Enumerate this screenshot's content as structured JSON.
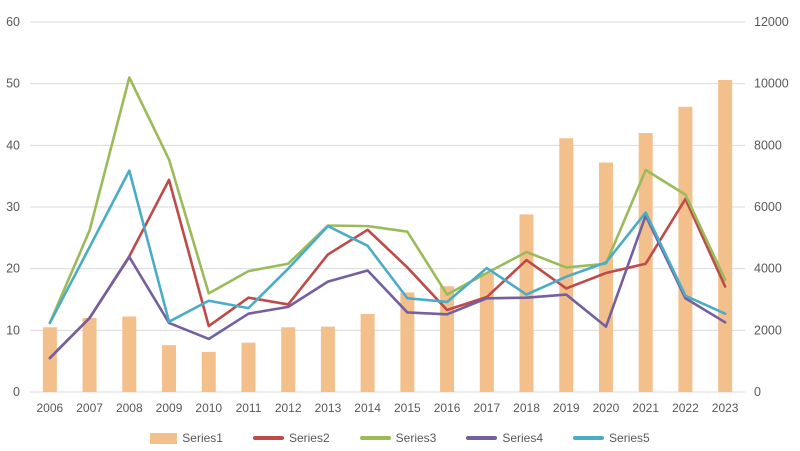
{
  "chart_data": {
    "type": "combo",
    "title": "",
    "categories": [
      "2006",
      "2007",
      "2008",
      "2009",
      "2010",
      "2011",
      "2012",
      "2013",
      "2014",
      "2015",
      "2016",
      "2017",
      "2018",
      "2019",
      "2020",
      "2021",
      "2022",
      "2023"
    ],
    "bar_series": {
      "name": "Series1",
      "axis": "right",
      "color": "#F3C08B",
      "values": [
        2100,
        2400,
        2450,
        1520,
        1300,
        1600,
        2100,
        2120,
        2530,
        3230,
        3430,
        3860,
        5760,
        8230,
        7440,
        8400,
        9250,
        10120
      ]
    },
    "line_series": [
      {
        "name": "Series2",
        "axis": "left",
        "color": "#BE4B48",
        "values": [
          5.5,
          12.0,
          22.0,
          34.4,
          10.7,
          15.3,
          14.2,
          22.3,
          26.3,
          20.2,
          13.3,
          15.4,
          21.4,
          16.8,
          19.3,
          20.8,
          31.3,
          17.1
        ]
      },
      {
        "name": "Series3",
        "axis": "left",
        "color": "#9BBB59",
        "values": [
          11.2,
          26.2,
          51.0,
          37.7,
          16.0,
          19.6,
          20.8,
          27.0,
          26.9,
          26.0,
          15.8,
          19.3,
          22.7,
          20.2,
          20.8,
          36.0,
          32.0,
          18.2
        ]
      },
      {
        "name": "Series4",
        "axis": "left",
        "color": "#7460A0",
        "values": [
          5.5,
          12.0,
          21.9,
          11.2,
          8.6,
          12.7,
          13.8,
          17.9,
          19.7,
          12.9,
          12.6,
          15.2,
          15.3,
          15.8,
          10.6,
          28.6,
          15.2,
          11.3
        ]
      },
      {
        "name": "Series5",
        "axis": "left",
        "color": "#4BACC6",
        "values": [
          11.2,
          23.5,
          35.9,
          11.4,
          14.8,
          13.6,
          20.0,
          26.9,
          23.7,
          15.2,
          14.6,
          20.1,
          15.8,
          18.7,
          21.0,
          29.1,
          15.6,
          12.7
        ]
      }
    ],
    "left_axis": {
      "min": 0,
      "max": 60,
      "step": 10,
      "labels": [
        "0",
        "10",
        "20",
        "30",
        "40",
        "50",
        "60"
      ]
    },
    "right_axis": {
      "min": 0,
      "max": 12000,
      "step": 2000,
      "labels": [
        "0",
        "2000",
        "4000",
        "6000",
        "8000",
        "10000",
        "12000"
      ]
    },
    "grid": true,
    "legend_position": "bottom",
    "legend_items": [
      "Series1",
      "Series2",
      "Series3",
      "Series4",
      "Series5"
    ],
    "colors": {
      "gridline": "#D9D9D9",
      "axis_text": "#595959",
      "background": "#FFFFFF"
    }
  }
}
